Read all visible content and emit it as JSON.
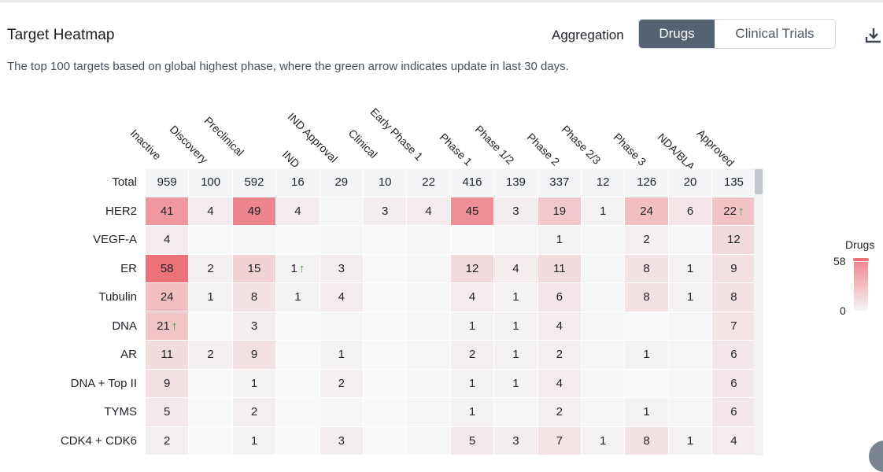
{
  "header": {
    "title": "Target Heatmap",
    "aggregation_label": "Aggregation",
    "toggle_active": "Drugs",
    "toggle_inactive": "Clinical Trials",
    "download_icon": "download-icon"
  },
  "subtitle": "The top 100 targets based on global highest phase, where the green arrow indicates update in last 30 days.",
  "columns": [
    "Inactive",
    "Discovery",
    "Preclinical",
    "IND",
    "IND Approval",
    "Clinical",
    "Early Phase 1",
    "Phase 1",
    "Phase 1/2",
    "Phase 2",
    "Phase 2/3",
    "Phase 3",
    "NDA/BLA",
    "Approved"
  ],
  "rows": [
    {
      "label": "Total",
      "values": [
        "959",
        "100",
        "592",
        "16",
        "29",
        "10",
        "22",
        "416",
        "139",
        "337",
        "12",
        "126",
        "20",
        "135"
      ],
      "arrows": [],
      "is_total": true
    },
    {
      "label": "HER2",
      "values": [
        "41",
        "4",
        "49",
        "4",
        "",
        "3",
        "4",
        "45",
        "3",
        "19",
        "1",
        "24",
        "6",
        "22"
      ],
      "arrows": [
        13
      ]
    },
    {
      "label": "VEGF-A",
      "values": [
        "4",
        "",
        "",
        "",
        "",
        "",
        "",
        "",
        "",
        "1",
        "",
        "2",
        "",
        "12"
      ],
      "arrows": []
    },
    {
      "label": "ER",
      "values": [
        "58",
        "2",
        "15",
        "1",
        "3",
        "",
        "",
        "12",
        "4",
        "11",
        "",
        "8",
        "1",
        "9"
      ],
      "arrows": [
        3
      ]
    },
    {
      "label": "Tubulin",
      "values": [
        "24",
        "1",
        "8",
        "1",
        "4",
        "",
        "",
        "4",
        "1",
        "6",
        "",
        "8",
        "1",
        "8"
      ],
      "arrows": []
    },
    {
      "label": "DNA",
      "values": [
        "21",
        "",
        "3",
        "",
        "",
        "",
        "",
        "1",
        "1",
        "4",
        "",
        "",
        "",
        "7"
      ],
      "arrows": [
        0
      ]
    },
    {
      "label": "AR",
      "values": [
        "11",
        "2",
        "9",
        "",
        "1",
        "",
        "",
        "2",
        "1",
        "2",
        "",
        "1",
        "",
        "6"
      ],
      "arrows": []
    },
    {
      "label": "DNA + Top II",
      "values": [
        "9",
        "",
        "1",
        "",
        "2",
        "",
        "",
        "1",
        "1",
        "4",
        "",
        "",
        "",
        "6"
      ],
      "arrows": []
    },
    {
      "label": "TYMS",
      "values": [
        "5",
        "",
        "2",
        "",
        "",
        "",
        "",
        "1",
        "",
        "2",
        "",
        "1",
        "",
        "6"
      ],
      "arrows": []
    },
    {
      "label": "CDK4 + CDK6",
      "values": [
        "2",
        "",
        "1",
        "",
        "3",
        "",
        "",
        "5",
        "3",
        "7",
        "1",
        "8",
        "1",
        "4"
      ],
      "arrows": []
    }
  ],
  "legend": {
    "title": "Drugs",
    "max": "58",
    "min": "0"
  },
  "colors": {
    "heat_max": "#ec7179",
    "heat_min": "#f4f4f5",
    "total_row": "#f4f5f7",
    "active_toggle": "#556274",
    "arrow": "#3a9a3a"
  },
  "arrow_glyph": "↑"
}
